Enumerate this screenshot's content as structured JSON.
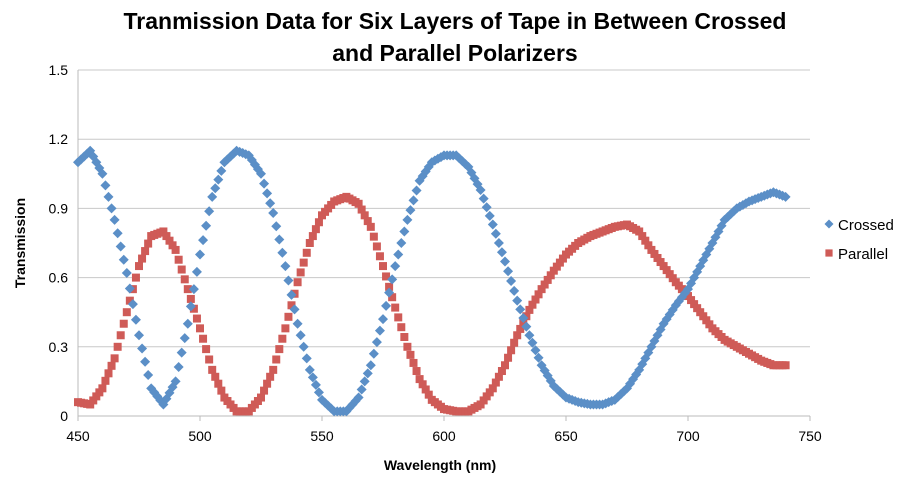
{
  "chart_data": {
    "type": "scatter",
    "title_line1": "Tranmission Data for Six Layers of Tape in Between Crossed",
    "title_line2": "and Parallel Polarizers",
    "xlabel": "Wavelength (nm)",
    "ylabel": "Transmission",
    "xlim": [
      450,
      750
    ],
    "ylim": [
      0,
      1.5
    ],
    "xticks": [
      "450",
      "500",
      "550",
      "600",
      "650",
      "700",
      "750"
    ],
    "yticks": [
      "0",
      "0.3",
      "0.6",
      "0.9",
      "1.2",
      "1.5"
    ],
    "grid": "horizontal",
    "legend_position": "right",
    "x": [
      450,
      455,
      460,
      465,
      470,
      475,
      480,
      485,
      490,
      495,
      500,
      505,
      510,
      515,
      520,
      525,
      530,
      535,
      540,
      545,
      550,
      555,
      560,
      565,
      570,
      575,
      580,
      585,
      590,
      595,
      600,
      605,
      610,
      615,
      620,
      625,
      630,
      635,
      640,
      645,
      650,
      655,
      660,
      665,
      670,
      675,
      680,
      685,
      690,
      695,
      700,
      705,
      710,
      715,
      720,
      725,
      730,
      735,
      740
    ],
    "series": [
      {
        "name": "Crossed",
        "color": "#5B8FC7",
        "marker": "diamond",
        "values": [
          1.1,
          1.15,
          1.05,
          0.85,
          0.62,
          0.35,
          0.12,
          0.05,
          0.15,
          0.4,
          0.7,
          0.95,
          1.1,
          1.15,
          1.13,
          1.05,
          0.88,
          0.65,
          0.4,
          0.2,
          0.07,
          0.02,
          0.02,
          0.08,
          0.22,
          0.42,
          0.65,
          0.85,
          1.02,
          1.1,
          1.13,
          1.13,
          1.08,
          0.98,
          0.83,
          0.67,
          0.5,
          0.35,
          0.22,
          0.13,
          0.08,
          0.06,
          0.05,
          0.05,
          0.07,
          0.12,
          0.2,
          0.3,
          0.4,
          0.48,
          0.55,
          0.65,
          0.75,
          0.85,
          0.9,
          0.93,
          0.95,
          0.97,
          0.95
        ]
      },
      {
        "name": "Parallel",
        "color": "#CF5B57",
        "marker": "square",
        "values": [
          0.06,
          0.05,
          0.12,
          0.25,
          0.45,
          0.65,
          0.78,
          0.8,
          0.72,
          0.55,
          0.38,
          0.2,
          0.08,
          0.02,
          0.02,
          0.08,
          0.2,
          0.38,
          0.58,
          0.75,
          0.87,
          0.93,
          0.95,
          0.92,
          0.82,
          0.65,
          0.47,
          0.3,
          0.16,
          0.07,
          0.03,
          0.02,
          0.02,
          0.05,
          0.12,
          0.22,
          0.35,
          0.46,
          0.55,
          0.63,
          0.7,
          0.75,
          0.78,
          0.8,
          0.82,
          0.83,
          0.8,
          0.72,
          0.65,
          0.58,
          0.52,
          0.45,
          0.38,
          0.33,
          0.3,
          0.27,
          0.24,
          0.22,
          0.22
        ]
      }
    ]
  }
}
